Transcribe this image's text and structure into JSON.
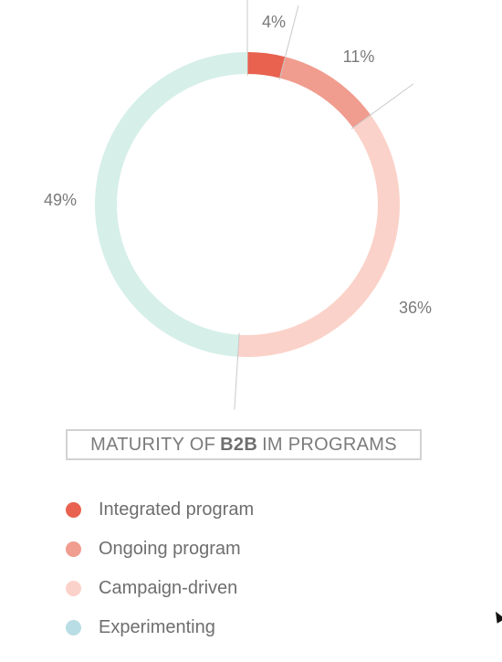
{
  "chart_data": {
    "type": "pie",
    "donut": true,
    "title_parts": [
      "MATURITY OF",
      "B2B",
      "IM PROGRAMS"
    ],
    "categories": [
      "Integrated program",
      "Ongoing program",
      "Campaign-driven",
      "Experimenting"
    ],
    "values": [
      4,
      11,
      36,
      49
    ],
    "labels": [
      "4%",
      "11%",
      "36%",
      "49%"
    ],
    "colors": [
      "#e8624f",
      "#f09c8e",
      "#fbd2c9",
      "#d6efe9"
    ],
    "legend_colors": [
      "#e8624f",
      "#f09c8e",
      "#fbd2c9",
      "#b9dde4"
    ],
    "legend_position": "bottom-left"
  }
}
